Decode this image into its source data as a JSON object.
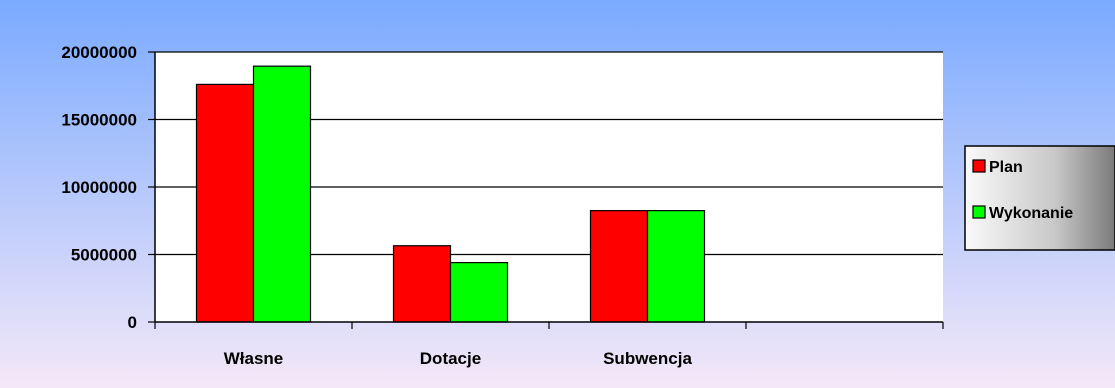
{
  "chart_data": {
    "type": "bar",
    "categories": [
      "Własne",
      "Dotacje",
      "Subwencja",
      ""
    ],
    "series": [
      {
        "name": "Plan",
        "color": "#ff0000",
        "values": [
          17600000,
          5650000,
          8250000,
          null
        ]
      },
      {
        "name": "Wykonanie",
        "color": "#00ff00",
        "values": [
          18950000,
          4400000,
          8250000,
          null
        ]
      }
    ],
    "yticks": [
      0,
      5000000,
      10000000,
      15000000,
      20000000
    ],
    "ylim": [
      0,
      20000000
    ],
    "grid": true,
    "legend_position": "right",
    "plot_background": "#ffffff",
    "page_background": [
      "#7aaaff",
      "#f4e8f8"
    ]
  }
}
